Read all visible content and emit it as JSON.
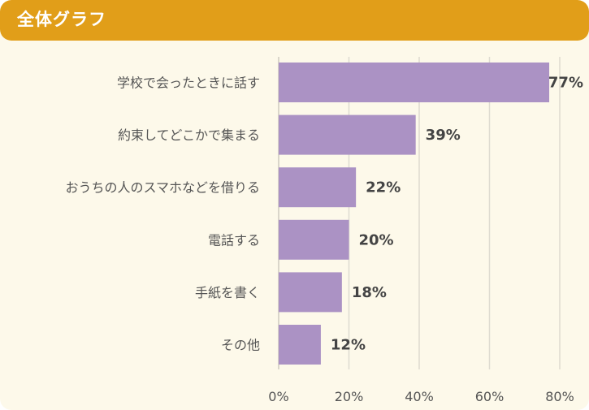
{
  "header": {
    "title": "全体グラフ"
  },
  "chart_data": {
    "type": "bar",
    "orientation": "horizontal",
    "title": "全体グラフ",
    "categories": [
      "学校で会ったときに話す",
      "約束してどこかで集まる",
      "おうちの人のスマホなどを借りる",
      "電話する",
      "手紙を書く",
      "その他"
    ],
    "values": [
      77,
      39,
      22,
      20,
      18,
      12
    ],
    "value_labels": [
      "77%",
      "39%",
      "22%",
      "20%",
      "18%",
      "12%"
    ],
    "xlim": [
      0,
      80
    ],
    "ticks": [
      0,
      20,
      40,
      60,
      80
    ],
    "tick_labels": [
      "0%",
      "20%",
      "40%",
      "60%",
      "80%"
    ],
    "grid": true,
    "colors": {
      "bar": "#ab92c4",
      "grid": "#dedbd0",
      "header": "#e19e19",
      "background": "#fdf9ea"
    }
  }
}
